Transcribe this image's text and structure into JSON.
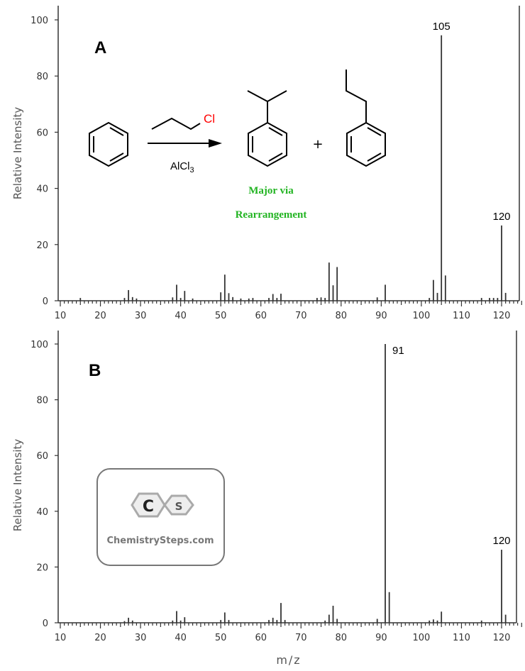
{
  "chart_data": [
    {
      "type": "bar",
      "panel_label": "A",
      "ylabel": "Relative Intensity",
      "xlabel": "",
      "xlim": [
        10,
        126
      ],
      "ylim": [
        0,
        100
      ],
      "xticks": [
        10,
        20,
        30,
        40,
        50,
        60,
        70,
        80,
        90,
        100,
        110,
        120
      ],
      "yticks": [
        0,
        20,
        40,
        60,
        80,
        100
      ],
      "peaks": {
        "mz": [
          15,
          26,
          27,
          28,
          29,
          38,
          39,
          40,
          41,
          43,
          50,
          51,
          52,
          53,
          55,
          57,
          58,
          62,
          63,
          64,
          65,
          74,
          75,
          76,
          77,
          78,
          79,
          89,
          91,
          102,
          103,
          104,
          105,
          106,
          115,
          117,
          118,
          119,
          121
        ],
        "intensity": [
          1,
          1,
          3.8,
          1.3,
          0.8,
          1.2,
          5.7,
          1,
          3.5,
          0.8,
          3,
          9.3,
          2.7,
          1.3,
          0.8,
          0.8,
          1,
          1,
          2.4,
          1,
          2.5,
          1,
          1.2,
          1,
          13.6,
          5.5,
          12,
          1.2,
          5.7,
          1,
          7.4,
          2.8,
          94.5,
          9,
          1,
          1,
          1,
          1,
          2.8
        ]
      },
      "annotations": [
        {
          "mz": 105,
          "text": "105"
        },
        {
          "mz": 120,
          "text": "120"
        }
      ],
      "peak_120": 26.8,
      "reaction": {
        "reagent_label": "AlCl3",
        "reagent_atom": "Cl",
        "product_note_line1": "Major via",
        "product_note_line2": "Rearrangement",
        "plus": "+"
      }
    },
    {
      "type": "bar",
      "panel_label": "B",
      "ylabel": "Relative Intensity",
      "xlabel": "m/z",
      "xlim": [
        10,
        126
      ],
      "ylim": [
        0,
        100
      ],
      "xticks": [
        10,
        20,
        30,
        40,
        50,
        60,
        70,
        80,
        90,
        100,
        110,
        120
      ],
      "yticks": [
        0,
        20,
        40,
        60,
        80,
        100
      ],
      "peaks": {
        "mz": [
          26,
          27,
          28,
          38,
          39,
          40,
          41,
          50,
          51,
          52,
          62,
          63,
          64,
          65,
          66,
          76,
          77,
          78,
          79,
          89,
          91,
          92,
          102,
          103,
          104,
          105,
          115,
          120,
          121
        ],
        "intensity": [
          0.6,
          1.8,
          0.8,
          0.8,
          4.2,
          0.8,
          2,
          1,
          3.7,
          1,
          1,
          1.8,
          1,
          7.1,
          1,
          0.8,
          2.9,
          6.1,
          1.4,
          1.4,
          100,
          11,
          0.8,
          1.2,
          0.8,
          4,
          0.8,
          26.2,
          2.9
        ]
      },
      "annotations": [
        {
          "mz": 91,
          "text": "91"
        },
        {
          "mz": 120,
          "text": "120"
        }
      ],
      "logo_text": "ChemistrySteps.com",
      "logo_letters": [
        "C",
        "S"
      ]
    }
  ],
  "colors": {
    "axis": "#333333",
    "peak": "#333333",
    "green_note": "#22b422",
    "chlorine": "#ff0000"
  }
}
